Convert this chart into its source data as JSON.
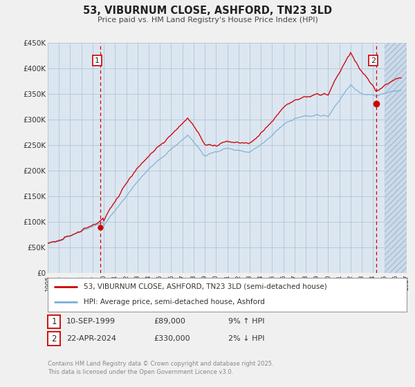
{
  "title": "53, VIBURNUM CLOSE, ASHFORD, TN23 3LD",
  "subtitle": "Price paid vs. HM Land Registry's House Price Index (HPI)",
  "background_color": "#f0f0f0",
  "plot_bg_color": "#dce6f0",
  "grid_color": "#b0c4d8",
  "future_bg_color": "#c8d8e8",
  "xlim": [
    1995,
    2027
  ],
  "ylim": [
    0,
    450000
  ],
  "yticks": [
    0,
    50000,
    100000,
    150000,
    200000,
    250000,
    300000,
    350000,
    400000,
    450000
  ],
  "ytick_labels": [
    "£0",
    "£50K",
    "£100K",
    "£150K",
    "£200K",
    "£250K",
    "£300K",
    "£350K",
    "£400K",
    "£450K"
  ],
  "xticks": [
    1995,
    1996,
    1997,
    1998,
    1999,
    2000,
    2001,
    2002,
    2003,
    2004,
    2005,
    2006,
    2007,
    2008,
    2009,
    2010,
    2011,
    2012,
    2013,
    2014,
    2015,
    2016,
    2017,
    2018,
    2019,
    2020,
    2021,
    2022,
    2023,
    2024,
    2025,
    2026,
    2027
  ],
  "sale1_date": 1999.71,
  "sale1_price": 89000,
  "sale1_label": "1",
  "sale2_date": 2024.31,
  "sale2_price": 330000,
  "sale2_label": "2",
  "red_line_color": "#cc0000",
  "blue_line_color": "#7bafd4",
  "vline_color": "#cc0000",
  "legend_label_red": "53, VIBURNUM CLOSE, ASHFORD, TN23 3LD (semi-detached house)",
  "legend_label_blue": "HPI: Average price, semi-detached house, Ashford",
  "annotation1_date": "10-SEP-1999",
  "annotation1_price": "£89,000",
  "annotation1_hpi": "9% ↑ HPI",
  "annotation2_date": "22-APR-2024",
  "annotation2_price": "£330,000",
  "annotation2_hpi": "2% ↓ HPI",
  "footer": "Contains HM Land Registry data © Crown copyright and database right 2025.\nThis data is licensed under the Open Government Licence v3.0.",
  "future_cutoff": 2025.0
}
